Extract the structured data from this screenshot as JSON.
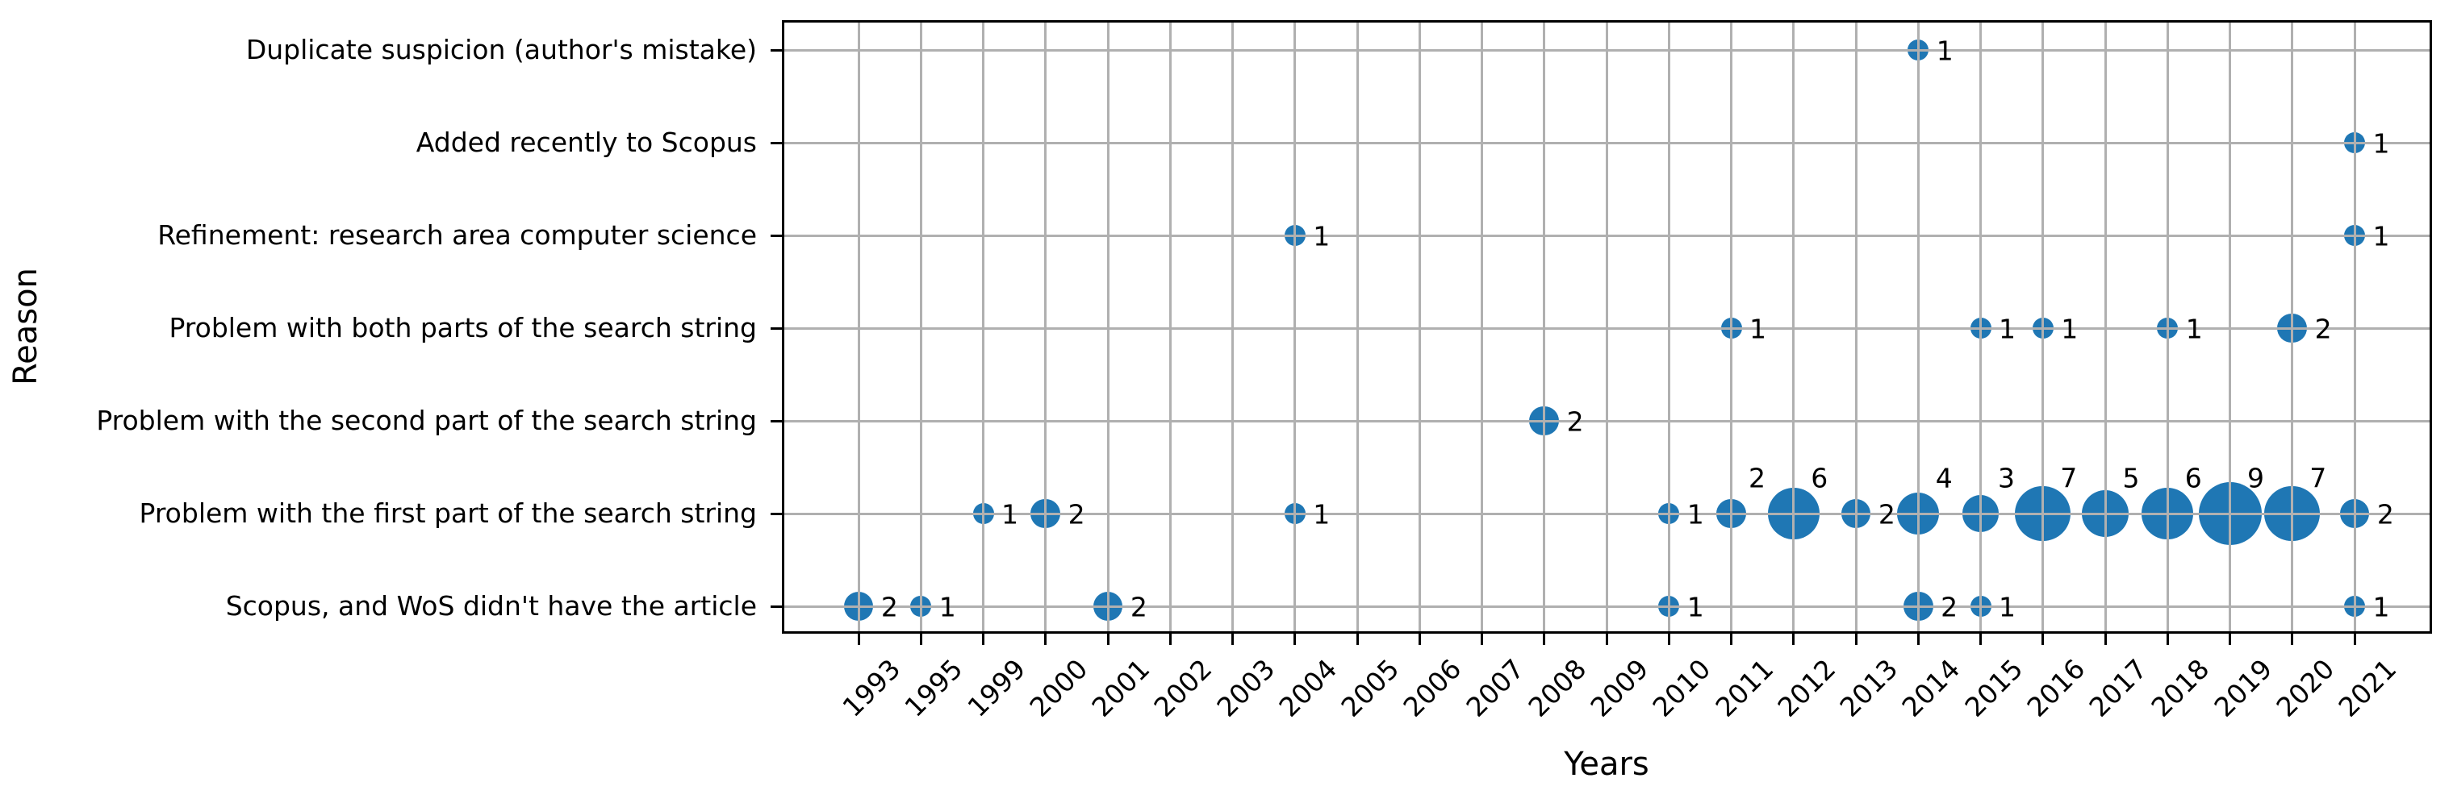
{
  "chart_data": {
    "type": "scatter",
    "subtype": "bubble",
    "title": "",
    "xlabel": "Years",
    "ylabel": "Reason",
    "grid": true,
    "legend": "none",
    "bubble_color": "#1f77b4",
    "grid_color": "#b0b0b0",
    "axis_color": "#000000",
    "x_categories": [
      "1993",
      "1995",
      "1999",
      "2000",
      "2001",
      "2002",
      "2003",
      "2004",
      "2005",
      "2006",
      "2007",
      "2008",
      "2009",
      "2010",
      "2011",
      "2012",
      "2013",
      "2014",
      "2015",
      "2016",
      "2017",
      "2018",
      "2019",
      "2020",
      "2021"
    ],
    "y_categories": [
      "Duplicate suspicion (author's mistake)",
      "Added recently to Scopus",
      "Refinement: research area computer science",
      "Problem with both parts of the search string",
      "Problem with the second part of the search string",
      "Problem with the first part of the search string",
      "Scopus, and WoS didn't have the article"
    ],
    "points": [
      {
        "reason": "Duplicate suspicion (author's mistake)",
        "year": "2014",
        "value": 1,
        "label_pos": "right"
      },
      {
        "reason": "Added recently to Scopus",
        "year": "2021",
        "value": 1,
        "label_pos": "right"
      },
      {
        "reason": "Refinement: research area computer science",
        "year": "2004",
        "value": 1,
        "label_pos": "right"
      },
      {
        "reason": "Refinement: research area computer science",
        "year": "2021",
        "value": 1,
        "label_pos": "right"
      },
      {
        "reason": "Problem with both parts of the search string",
        "year": "2011",
        "value": 1,
        "label_pos": "right"
      },
      {
        "reason": "Problem with both parts of the search string",
        "year": "2015",
        "value": 1,
        "label_pos": "right"
      },
      {
        "reason": "Problem with both parts of the search string",
        "year": "2016",
        "value": 1,
        "label_pos": "right"
      },
      {
        "reason": "Problem with both parts of the search string",
        "year": "2018",
        "value": 1,
        "label_pos": "right"
      },
      {
        "reason": "Problem with both parts of the search string",
        "year": "2020",
        "value": 2,
        "label_pos": "right"
      },
      {
        "reason": "Problem with the second part of the search string",
        "year": "2008",
        "value": 2,
        "label_pos": "right"
      },
      {
        "reason": "Problem with the first part of the search string",
        "year": "1999",
        "value": 1,
        "label_pos": "right"
      },
      {
        "reason": "Problem with the first part of the search string",
        "year": "2000",
        "value": 2,
        "label_pos": "right"
      },
      {
        "reason": "Problem with the first part of the search string",
        "year": "2004",
        "value": 1,
        "label_pos": "right"
      },
      {
        "reason": "Problem with the first part of the search string",
        "year": "2010",
        "value": 1,
        "label_pos": "right"
      },
      {
        "reason": "Problem with the first part of the search string",
        "year": "2011",
        "value": 2,
        "label_pos": "above"
      },
      {
        "reason": "Problem with the first part of the search string",
        "year": "2012",
        "value": 6,
        "label_pos": "above"
      },
      {
        "reason": "Problem with the first part of the search string",
        "year": "2013",
        "value": 2,
        "label_pos": "right"
      },
      {
        "reason": "Problem with the first part of the search string",
        "year": "2014",
        "value": 4,
        "label_pos": "above"
      },
      {
        "reason": "Problem with the first part of the search string",
        "year": "2015",
        "value": 3,
        "label_pos": "above"
      },
      {
        "reason": "Problem with the first part of the search string",
        "year": "2016",
        "value": 7,
        "label_pos": "above"
      },
      {
        "reason": "Problem with the first part of the search string",
        "year": "2017",
        "value": 5,
        "label_pos": "above"
      },
      {
        "reason": "Problem with the first part of the search string",
        "year": "2018",
        "value": 6,
        "label_pos": "above"
      },
      {
        "reason": "Problem with the first part of the search string",
        "year": "2019",
        "value": 9,
        "label_pos": "above"
      },
      {
        "reason": "Problem with the first part of the search string",
        "year": "2020",
        "value": 7,
        "label_pos": "above"
      },
      {
        "reason": "Problem with the first part of the search string",
        "year": "2021",
        "value": 2,
        "label_pos": "right"
      },
      {
        "reason": "Scopus, and WoS didn't have the article",
        "year": "1993",
        "value": 2,
        "label_pos": "right"
      },
      {
        "reason": "Scopus, and WoS didn't have the article",
        "year": "1995",
        "value": 1,
        "label_pos": "right"
      },
      {
        "reason": "Scopus, and WoS didn't have the article",
        "year": "2001",
        "value": 2,
        "label_pos": "right"
      },
      {
        "reason": "Scopus, and WoS didn't have the article",
        "year": "2010",
        "value": 1,
        "label_pos": "right"
      },
      {
        "reason": "Scopus, and WoS didn't have the article",
        "year": "2014",
        "value": 2,
        "label_pos": "right"
      },
      {
        "reason": "Scopus, and WoS didn't have the article",
        "year": "2015",
        "value": 1,
        "label_pos": "right"
      },
      {
        "reason": "Scopus, and WoS didn't have the article",
        "year": "2021",
        "value": 1,
        "label_pos": "right"
      }
    ]
  }
}
